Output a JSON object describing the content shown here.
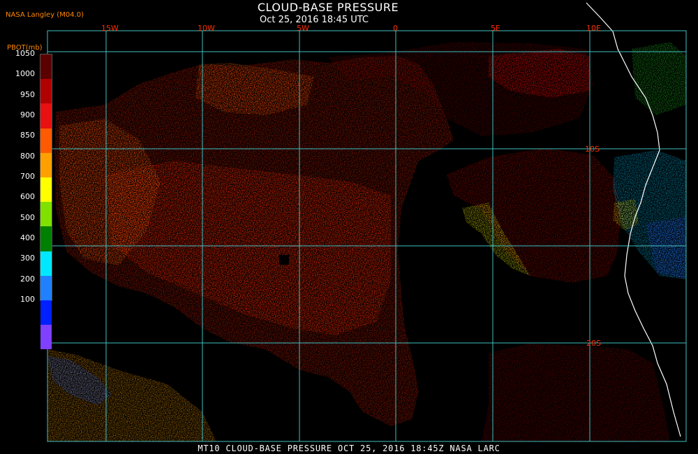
{
  "header": {
    "title": "CLOUD-BASE PRESSURE",
    "subtitle": "Oct 25, 2016 18:45 UTC",
    "source": "NASA Langley (M04.0)"
  },
  "colorbar": {
    "unit_label": "PBOT(mb)",
    "ticks": [
      "1050",
      "1000",
      "950",
      "900",
      "850",
      "800",
      "700",
      "600",
      "500",
      "400",
      "300",
      "200",
      "100"
    ],
    "colors": [
      "#5a0000",
      "#b00000",
      "#e81010",
      "#ff5a00",
      "#ffa000",
      "#ffff00",
      "#80e000",
      "#008000",
      "#00e8ff",
      "#2080ff",
      "#0020ff",
      "#8040ff"
    ]
  },
  "map": {
    "lon_labels": [
      "15W",
      "10W",
      "5W",
      "0",
      "5E",
      "10E"
    ],
    "lat_labels": [
      "10S",
      "20S"
    ],
    "grid_color": "#40c0c0",
    "label_color": "#ff3000",
    "coast_color": "#ffffff"
  },
  "footer": {
    "text": "MT10  CLOUD-BASE PRESSURE   OCT 25, 2016 18:45Z   NASA LARC"
  }
}
